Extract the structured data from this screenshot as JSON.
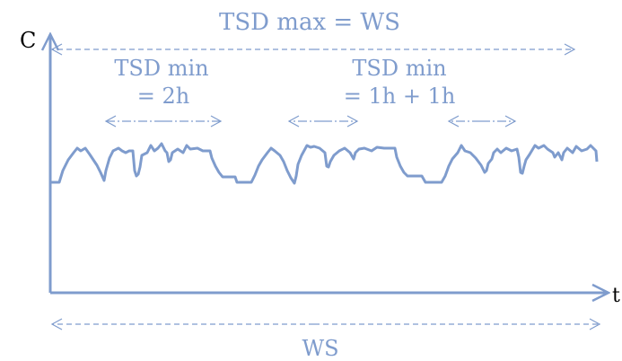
{
  "diagram": {
    "title": "TSD max  = WS",
    "y_axis_label": "C",
    "x_axis_label": "t",
    "tsd_min_left_line1": "TSD min",
    "tsd_min_left_line2": "= 2h",
    "tsd_min_right_line1": "TSD min",
    "tsd_min_right_line2": "= 1h + 1h",
    "ws_label": "WS",
    "colors": {
      "accent": "#7f9ccd",
      "axis": "#7f9ccd",
      "text_axis": "#000000"
    }
  }
}
